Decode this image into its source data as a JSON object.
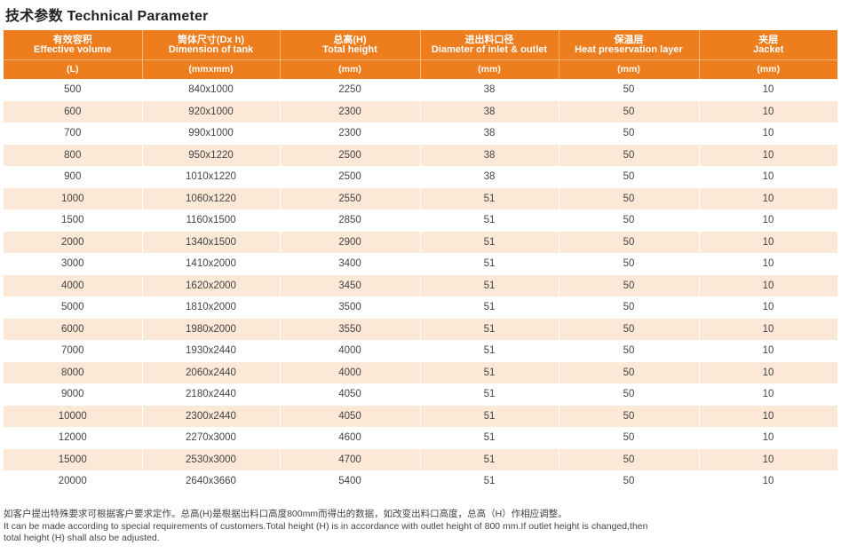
{
  "title": "技术参数 Technical Parameter",
  "headers": [
    {
      "cn": "有效容积",
      "en": "Effective volume",
      "unit": "(L)"
    },
    {
      "cn": "筒体尺寸(Dx h)",
      "en": "Dimension of tank",
      "unit": "(mmxmm)"
    },
    {
      "cn": "总高(H)",
      "en": "Total height",
      "unit": "(mm)"
    },
    {
      "cn": "进出料口径",
      "en": "Diameter of inlet & outlet",
      "unit": "(mm)"
    },
    {
      "cn": "保温层",
      "en": "Heat preservation layer",
      "unit": "(mm)"
    },
    {
      "cn": "夹层",
      "en": "Jacket",
      "unit": "(mm)"
    }
  ],
  "rows": [
    [
      "500",
      "840x1000",
      "2250",
      "38",
      "50",
      "10"
    ],
    [
      "600",
      "920x1000",
      "2300",
      "38",
      "50",
      "10"
    ],
    [
      "700",
      "990x1000",
      "2300",
      "38",
      "50",
      "10"
    ],
    [
      "800",
      "950x1220",
      "2500",
      "38",
      "50",
      "10"
    ],
    [
      "900",
      "1010x1220",
      "2500",
      "38",
      "50",
      "10"
    ],
    [
      "1000",
      "1060x1220",
      "2550",
      "51",
      "50",
      "10"
    ],
    [
      "1500",
      "1160x1500",
      "2850",
      "51",
      "50",
      "10"
    ],
    [
      "2000",
      "1340x1500",
      "2900",
      "51",
      "50",
      "10"
    ],
    [
      "3000",
      "1410x2000",
      "3400",
      "51",
      "50",
      "10"
    ],
    [
      "4000",
      "1620x2000",
      "3450",
      "51",
      "50",
      "10"
    ],
    [
      "5000",
      "1810x2000",
      "3500",
      "51",
      "50",
      "10"
    ],
    [
      "6000",
      "1980x2000",
      "3550",
      "51",
      "50",
      "10"
    ],
    [
      "7000",
      "1930x2440",
      "4000",
      "51",
      "50",
      "10"
    ],
    [
      "8000",
      "2060x2440",
      "4000",
      "51",
      "50",
      "10"
    ],
    [
      "9000",
      "2180x2440",
      "4050",
      "51",
      "50",
      "10"
    ],
    [
      "10000",
      "2300x2440",
      "4050",
      "51",
      "50",
      "10"
    ],
    [
      "12000",
      "2270x3000",
      "4600",
      "51",
      "50",
      "10"
    ],
    [
      "15000",
      "2530x3000",
      "4700",
      "51",
      "50",
      "10"
    ],
    [
      "20000",
      "2640x3660",
      "5400",
      "51",
      "50",
      "10"
    ]
  ],
  "footer": {
    "cn": "如客户提出特殊要求可根据客户要求定作。总高(H)是根据出料口高度800mm而得出的数据，如改变出料口高度，总高（H）作相应调整。",
    "en1": "It can be made according to special requirements of customers.Total height (H) is in accordance with outlet height of 800 mm.If outlet height is changed,then",
    "en2": "total height (H) shall also be adjusted."
  },
  "colors": {
    "header_bg": "#ee7d1e",
    "stripe": "#fbe8d7"
  }
}
